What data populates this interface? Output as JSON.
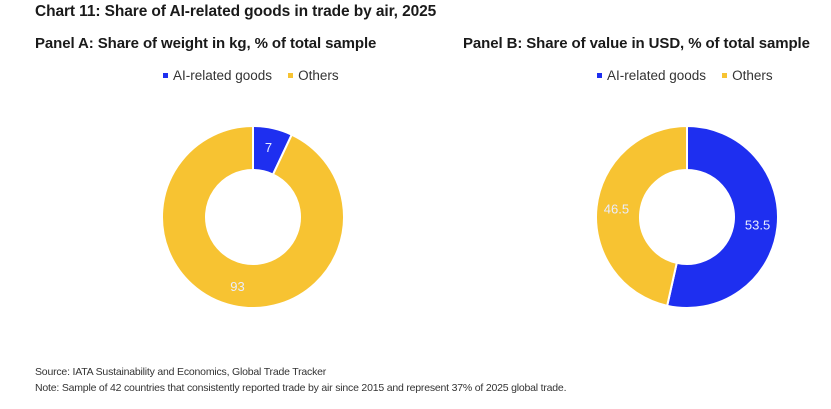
{
  "chart_data": [
    {
      "type": "pie",
      "variant": "donut",
      "title": "Panel A: Share of weight in kg, % of total sample",
      "legend": [
        "AI-related goods",
        "Others"
      ],
      "legend_placement": "top",
      "slices": [
        {
          "label": "AI-related goods",
          "value": 7,
          "display": "7",
          "color": "#1e2ff0"
        },
        {
          "label": "Others",
          "value": 93,
          "display": "93",
          "color": "#f7c332"
        }
      ]
    },
    {
      "type": "pie",
      "variant": "donut",
      "title": "Panel B: Share of value in USD, % of total sample",
      "legend": [
        "AI-related goods",
        "Others"
      ],
      "legend_placement": "top",
      "slices": [
        {
          "label": "AI-related goods",
          "value": 53.5,
          "display": "53.5",
          "color": "#1e2ff0"
        },
        {
          "label": "Others",
          "value": 46.5,
          "display": "46.5",
          "color": "#f7c332"
        }
      ]
    }
  ],
  "header": {
    "title": "Chart 11: Share of AI-related goods in trade by air, 2025"
  },
  "panels": [
    {
      "title": "Panel A: Share of weight in kg, % of total sample",
      "legend": [
        {
          "label": "AI-related goods",
          "color": "#1e2ff0"
        },
        {
          "label": "Others",
          "color": "#f7c332"
        }
      ]
    },
    {
      "title": "Panel B: Share of value in USD, % of total sample",
      "legend": [
        {
          "label": "AI-related goods",
          "color": "#1e2ff0"
        },
        {
          "label": "Others",
          "color": "#f7c332"
        }
      ]
    }
  ],
  "footer": {
    "source": "Source: IATA Sustainability and Economics, Global Trade Tracker",
    "note": "Note: Sample of 42 countries that consistently reported trade by air since 2015 and represent 37% of 2025 global trade."
  }
}
